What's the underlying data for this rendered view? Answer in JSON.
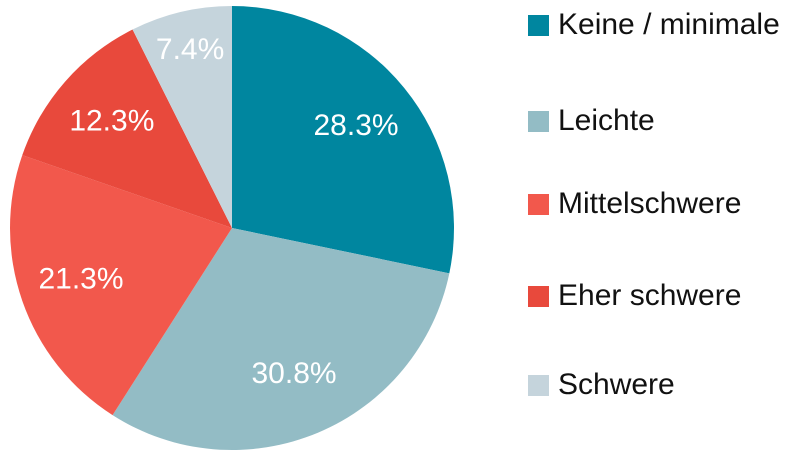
{
  "chart_data": {
    "type": "pie",
    "categories": [
      "Keine / minimale",
      "Leichte",
      "Mittelschwere",
      "Eher schwere",
      "Schwere"
    ],
    "values": [
      28.3,
      30.8,
      21.3,
      12.3,
      7.4
    ],
    "value_labels": [
      "28.3%",
      "30.8%",
      "21.3%",
      "12.3%",
      "7.4%"
    ],
    "colors": [
      "#00869f",
      "#93bcc5",
      "#f2584c",
      "#e8493c",
      "#c5d4dc"
    ]
  }
}
